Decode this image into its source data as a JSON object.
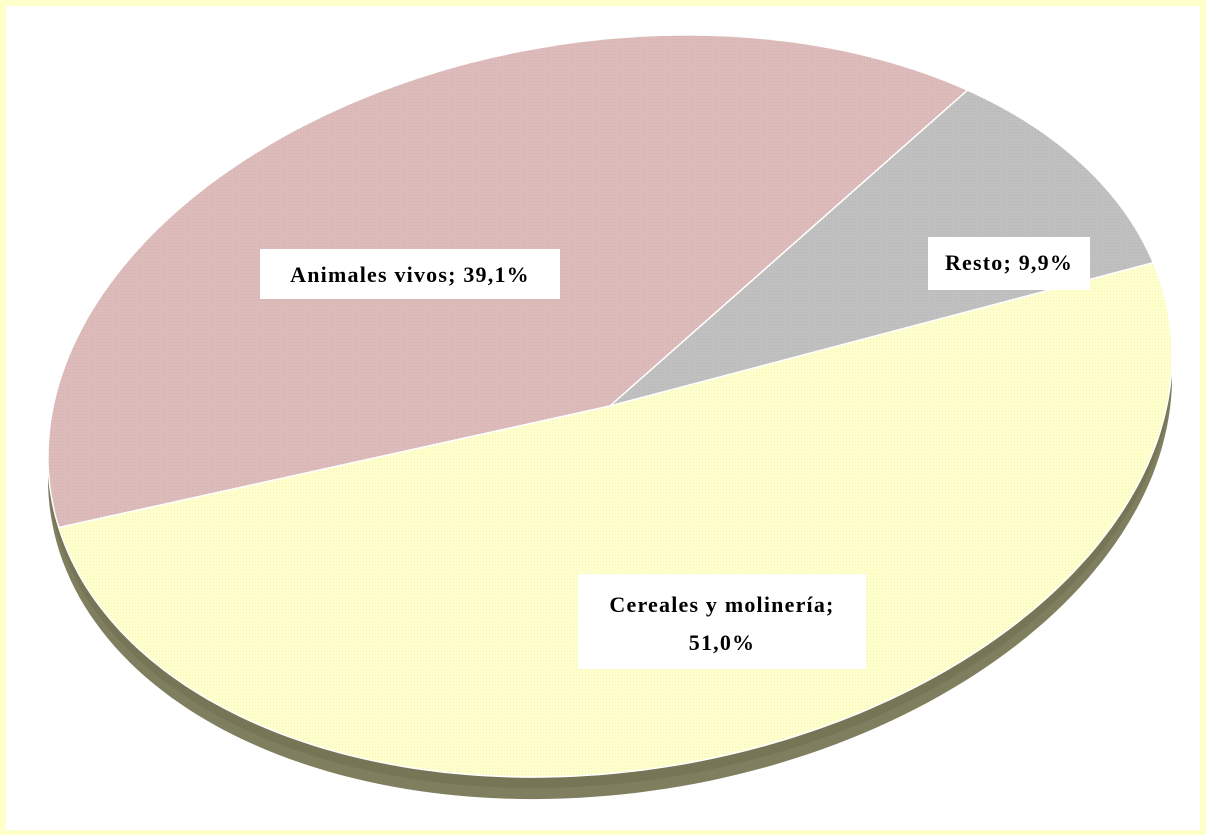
{
  "chart_data": {
    "type": "pie",
    "style": "3d-oval",
    "title": "",
    "slices": [
      {
        "label": "Animales vivos",
        "value": 39.1,
        "display": "Animales vivos; 39,1%",
        "color": "#DDBBBB"
      },
      {
        "label": "Resto",
        "value": 9.9,
        "display": "Resto; 9,9%",
        "color": "#C0C0C0"
      },
      {
        "label": "Cereales y molinería",
        "value": 51.0,
        "display": "Cereales y molinería; 51,0%",
        "color": "#FFFFCC"
      }
    ],
    "units": "%",
    "legend": "none",
    "side_color": "#7F7F60",
    "background": "#FFFFCC",
    "plot_background": "#FFFFFF"
  }
}
